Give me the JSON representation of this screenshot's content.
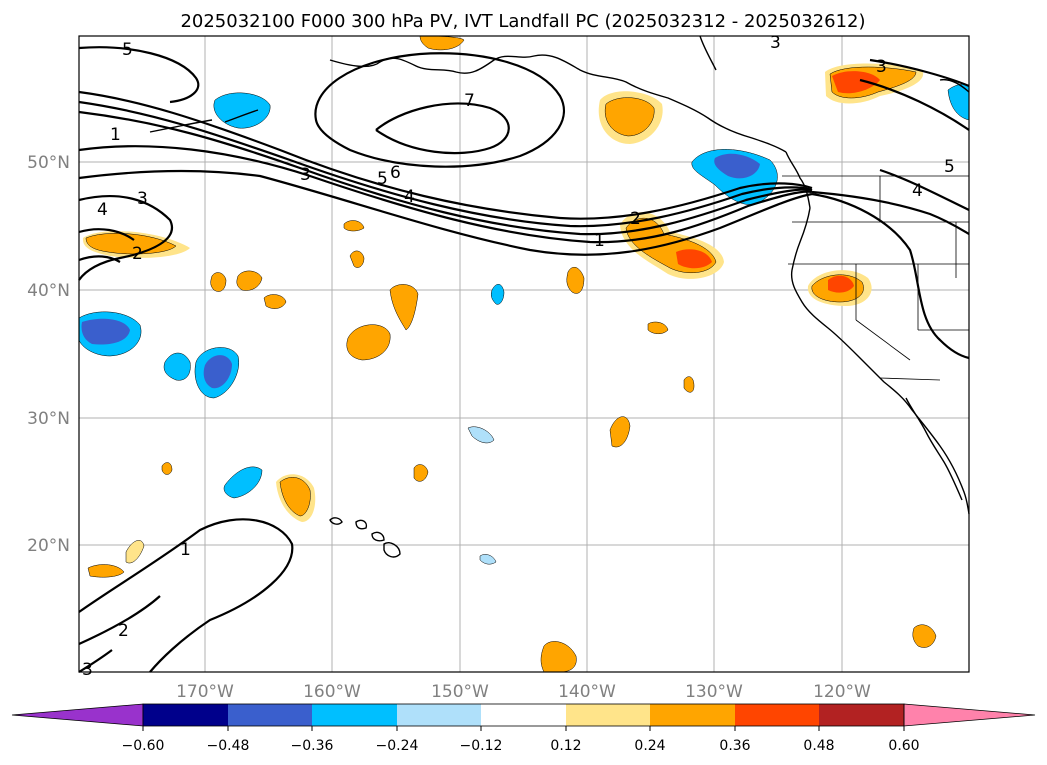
{
  "title": "2025032100 F000 300 hPa PV, IVT Landfall PC (2025032312 - 2025032612)",
  "lat_labels": [
    "50°N",
    "40°N",
    "30°N",
    "20°N"
  ],
  "lon_labels": [
    "170°W",
    "160°W",
    "150°W",
    "140°W",
    "130°W",
    "120°W"
  ],
  "colorbar": {
    "ticks": [
      "−0.60",
      "−0.48",
      "−0.36",
      "−0.24",
      "−0.12",
      "0.12",
      "0.24",
      "0.36",
      "0.48",
      "0.60"
    ],
    "colors": [
      "#9932cc",
      "#00008b",
      "#3a5fcd",
      "#00bfff",
      "#afe0fa",
      "#ffffff",
      "#ffe48a",
      "#ffa500",
      "#ff4500",
      "#b22222",
      "#ff82ab"
    ]
  },
  "colors": {
    "neg_strong": "#3a5fcd",
    "neg_mid": "#00bfff",
    "neg_weak": "#afe0fa",
    "pos_weak": "#ffe48a",
    "pos_mid": "#ffa500",
    "pos_strong": "#ff4500"
  },
  "pv_contour_labels": [
    "5",
    "1",
    "3",
    "4",
    "2",
    "7",
    "3",
    "5",
    "6",
    "4",
    "2",
    "1",
    "3",
    "3",
    "4",
    "5",
    "1",
    "2",
    "3"
  ]
}
